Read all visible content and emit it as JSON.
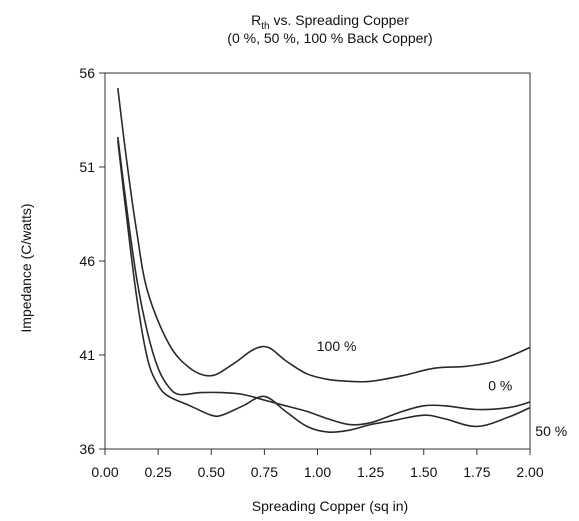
{
  "chart_data": {
    "type": "line",
    "title": "vs. Spreading Copper",
    "title_symbol": "R",
    "title_symbol_subscript": "th",
    "subtitle": "(0 %, 50 %, 100 % Back Copper)",
    "xlabel": "Spreading Copper (sq in)",
    "ylabel": "Impedance (C/watts)",
    "xlim": [
      0.0,
      2.0
    ],
    "ylim": [
      36,
      56
    ],
    "xticks": [
      "0.00",
      "0.25",
      "0.50",
      "0.75",
      "1.00",
      "1.25",
      "1.50",
      "1.75",
      "2.00"
    ],
    "yticks": [
      "36",
      "41",
      "46",
      "51",
      "56"
    ],
    "grid": false,
    "series": [
      {
        "name": "100 %",
        "x": [
          0.06,
          0.1,
          0.15,
          0.2,
          0.3,
          0.4,
          0.5,
          0.6,
          0.7,
          0.77,
          0.85,
          0.95,
          1.05,
          1.15,
          1.25,
          1.4,
          1.55,
          1.7,
          1.85,
          2.0
        ],
        "y": [
          55.2,
          51.5,
          47.5,
          44.4,
          41.6,
          40.3,
          39.9,
          40.5,
          41.3,
          41.4,
          40.7,
          40.0,
          39.7,
          39.6,
          39.6,
          39.9,
          40.3,
          40.4,
          40.7,
          41.4
        ]
      },
      {
        "name": "0 %",
        "x": [
          0.06,
          0.1,
          0.15,
          0.2,
          0.25,
          0.3,
          0.35,
          0.45,
          0.55,
          0.65,
          0.75,
          0.85,
          0.95,
          1.05,
          1.15,
          1.25,
          1.4,
          1.5,
          1.6,
          1.75,
          1.9,
          2.0
        ],
        "y": [
          52.6,
          49.0,
          45.0,
          42.2,
          40.3,
          39.3,
          38.9,
          39.0,
          39.0,
          38.9,
          38.6,
          38.3,
          38.0,
          37.6,
          37.3,
          37.4,
          38.0,
          38.3,
          38.3,
          38.1,
          38.2,
          38.5
        ]
      },
      {
        "name": "50 %",
        "x": [
          0.06,
          0.1,
          0.15,
          0.2,
          0.25,
          0.3,
          0.4,
          0.5,
          0.55,
          0.65,
          0.75,
          0.85,
          0.95,
          1.05,
          1.15,
          1.25,
          1.35,
          1.5,
          1.6,
          1.75,
          1.9,
          2.0
        ],
        "y": [
          52.4,
          48.5,
          44.0,
          40.8,
          39.4,
          38.8,
          38.3,
          37.8,
          37.8,
          38.3,
          38.8,
          38.0,
          37.2,
          36.9,
          37.0,
          37.3,
          37.5,
          37.8,
          37.6,
          37.2,
          37.7,
          38.2
        ]
      }
    ],
    "annotations": [
      {
        "text": "100 %",
        "x": 1.09,
        "y": 41.2
      },
      {
        "text": "0 %",
        "x": 1.86,
        "y": 39.1
      },
      {
        "text": "50 %",
        "x": 2.1,
        "y": 36.7
      }
    ]
  }
}
